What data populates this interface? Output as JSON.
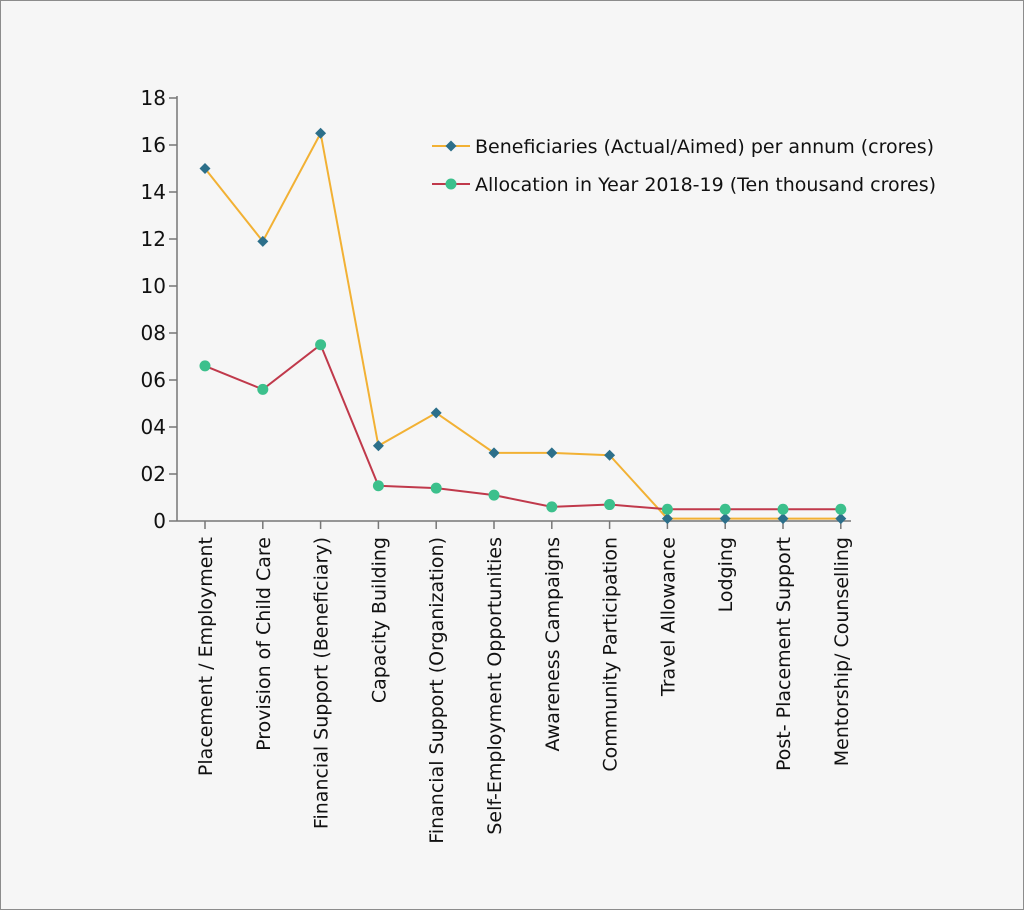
{
  "chart_data": {
    "type": "line",
    "title": "",
    "xlabel": "",
    "ylabel": "",
    "ylim": [
      0,
      18
    ],
    "y_ticks": [
      {
        "value": 0,
        "label": "0"
      },
      {
        "value": 2,
        "label": "02"
      },
      {
        "value": 4,
        "label": "04"
      },
      {
        "value": 6,
        "label": "06"
      },
      {
        "value": 8,
        "label": "08"
      },
      {
        "value": 10,
        "label": "10"
      },
      {
        "value": 12,
        "label": "12"
      },
      {
        "value": 14,
        "label": "14"
      },
      {
        "value": 16,
        "label": "16"
      },
      {
        "value": 18,
        "label": "18"
      }
    ],
    "categories": [
      "Placement / Employment",
      "Provision of Child Care",
      "Financial Support (Beneficiary)",
      "Capacity Building",
      "Financial Support (Organization)",
      "Self-Employment Opportunities",
      "Awareness Campaigns",
      "Community Participation",
      "Travel Allowance",
      "Lodging",
      "Post- Placement Support",
      "Mentorship/ Counselling"
    ],
    "series": [
      {
        "name": "Beneficiaries (Actual/Aimed) per annum (crores)",
        "color": "#f2b134",
        "marker": "diamond",
        "marker_color": "#2c6f8a",
        "values": [
          15.0,
          11.9,
          16.5,
          3.2,
          4.6,
          2.9,
          2.9,
          2.8,
          0.1,
          0.1,
          0.1,
          0.1
        ]
      },
      {
        "name": "Allocation in Year 2018-19 (Ten thousand crores)",
        "color": "#c0394b",
        "marker": "circle",
        "marker_color": "#3cc08c",
        "values": [
          6.6,
          5.6,
          7.5,
          1.5,
          1.4,
          1.1,
          0.6,
          0.7,
          0.5,
          0.5,
          0.5,
          0.5
        ]
      }
    ],
    "legend": "top-right",
    "grid": false
  }
}
